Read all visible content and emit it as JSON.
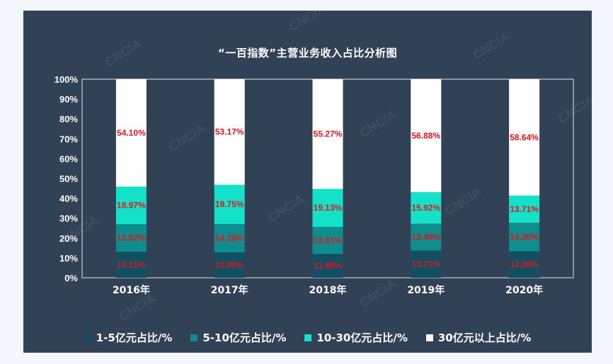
{
  "watermark": "CNCIA",
  "chart_data": {
    "type": "bar",
    "stacked": true,
    "percent": true,
    "title": "“一百指数”主营业务收入占比分析图",
    "categories": [
      "2016年",
      "2017年",
      "2018年",
      "2019年",
      "2020年"
    ],
    "ylim": [
      0,
      100
    ],
    "yticks": [
      "0%",
      "10%",
      "20%",
      "30%",
      "40%",
      "50%",
      "60%",
      "70%",
      "80%",
      "90%",
      "100%"
    ],
    "grid": false,
    "legend_position": "bottom",
    "series": [
      {
        "name": "1-5亿元占比/%",
        "color": "#124f61",
        "values": [
          13.11,
          12.8,
          11.98,
          13.71,
          13.36
        ],
        "labels": [
          "13.11%",
          "12.80%",
          "11.98%",
          "13.71%",
          "13.36%"
        ]
      },
      {
        "name": "5-10亿元占比/%",
        "color": "#0f8c8e",
        "values": [
          13.82,
          14.28,
          13.61,
          13.49,
          14.3
        ],
        "labels": [
          "13.82%",
          "14.28%",
          "13.61%",
          "13.49%",
          "14.30%"
        ]
      },
      {
        "name": "10-30亿元占比/%",
        "color": "#13e1c8",
        "values": [
          18.97,
          19.75,
          19.13,
          15.92,
          13.71
        ],
        "labels": [
          "18.97%",
          "19.75%",
          "19.13%",
          "15.92%",
          "13.71%"
        ]
      },
      {
        "name": "30亿元以上占比/%",
        "color": "#ffffff",
        "values": [
          54.1,
          53.17,
          55.27,
          56.88,
          58.64
        ],
        "labels": [
          "54.10%",
          "53.17%",
          "55.27%",
          "56.88%",
          "58.64%"
        ]
      }
    ]
  }
}
